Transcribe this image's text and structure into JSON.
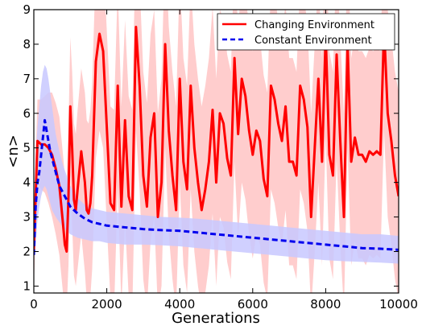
{
  "chart_data": {
    "type": "line",
    "title": "",
    "xlabel": "Generations",
    "ylabel": "<n>",
    "xlim": [
      0,
      10000
    ],
    "ylim": [
      0.8,
      9
    ],
    "xticks": [
      0,
      2000,
      4000,
      6000,
      8000,
      10000
    ],
    "yticks": [
      1,
      2,
      3,
      4,
      5,
      6,
      7,
      8,
      9
    ],
    "grid": false,
    "legend": {
      "position": "top-right"
    },
    "series": [
      {
        "name": "Changing Environment",
        "color": "#ff0000",
        "band_color": "#ffc8c8",
        "line_style": "solid",
        "x": [
          0,
          100,
          200,
          300,
          400,
          500,
          600,
          700,
          800,
          850,
          900,
          950,
          1000,
          1050,
          1100,
          1150,
          1200,
          1300,
          1400,
          1450,
          1500,
          1550,
          1600,
          1700,
          1800,
          1900,
          2000,
          2100,
          2200,
          2300,
          2400,
          2500,
          2600,
          2700,
          2800,
          2900,
          3000,
          3100,
          3200,
          3300,
          3400,
          3500,
          3600,
          3700,
          3800,
          3900,
          4000,
          4100,
          4200,
          4300,
          4400,
          4500,
          4600,
          4700,
          4800,
          4900,
          5000,
          5100,
          5200,
          5300,
          5400,
          5500,
          5600,
          5700,
          5800,
          5900,
          6000,
          6100,
          6200,
          6300,
          6400,
          6500,
          6600,
          6700,
          6800,
          6900,
          7000,
          7100,
          7200,
          7300,
          7400,
          7500,
          7600,
          7700,
          7800,
          7900,
          8000,
          8100,
          8200,
          8300,
          8400,
          8500,
          8600,
          8700,
          8800,
          8900,
          9000,
          9100,
          9200,
          9300,
          9400,
          9500,
          9600,
          9700,
          9800,
          9900,
          10000
        ],
        "values": [
          2.0,
          5.2,
          5.1,
          5.1,
          5.0,
          4.8,
          4.4,
          3.9,
          2.8,
          2.2,
          2.0,
          3.6,
          6.2,
          5.0,
          3.5,
          3.2,
          3.8,
          4.9,
          4.0,
          3.2,
          3.1,
          3.4,
          4.2,
          7.5,
          8.3,
          7.8,
          5.6,
          3.4,
          3.2,
          6.8,
          3.3,
          5.8,
          3.6,
          3.2,
          8.5,
          6.8,
          4.2,
          3.3,
          5.3,
          6.0,
          3.0,
          4.0,
          8.0,
          5.5,
          4.2,
          3.2,
          7.0,
          4.6,
          3.8,
          6.8,
          5.0,
          4.0,
          3.2,
          3.8,
          4.6,
          6.1,
          4.0,
          6.0,
          5.7,
          4.7,
          4.2,
          7.6,
          5.4,
          7.0,
          6.5,
          5.5,
          4.8,
          5.5,
          5.2,
          4.1,
          3.6,
          6.8,
          6.4,
          5.7,
          5.2,
          6.2,
          4.6,
          4.6,
          4.2,
          6.8,
          6.4,
          5.6,
          3.0,
          5.0,
          7.0,
          4.6,
          8.3,
          4.8,
          4.2,
          7.7,
          5.2,
          3.0,
          8.0,
          4.6,
          5.3,
          4.8,
          4.8,
          4.6,
          4.9,
          4.8,
          4.9,
          4.8,
          8.5,
          6.0,
          5.2,
          4.2,
          3.6
        ],
        "band_half_width": [
          1.0,
          1.2,
          1.3,
          1.4,
          1.6,
          1.8,
          1.9,
          2.0,
          2.0,
          2.0,
          2.0,
          2.0,
          2.0,
          2.2,
          2.2,
          2.2,
          2.3,
          2.4,
          2.6,
          2.6,
          2.6,
          2.7,
          2.7,
          2.8,
          2.8,
          2.8,
          2.8,
          2.8,
          2.9,
          2.9,
          2.9,
          2.9,
          2.9,
          2.9,
          3.0,
          3.0,
          3.0,
          3.0,
          3.0,
          3.0,
          3.0,
          3.0,
          3.0,
          3.0,
          3.0,
          3.0,
          3.0,
          3.0,
          3.0,
          3.0,
          3.0,
          3.0,
          3.0,
          3.0,
          3.0,
          3.0,
          3.0,
          3.0,
          3.0,
          3.0,
          3.0,
          3.0,
          3.0,
          3.0,
          3.0,
          3.0,
          3.0,
          3.0,
          3.0,
          3.0,
          3.0,
          3.0,
          3.0,
          3.0,
          3.0,
          3.0,
          3.0,
          3.0,
          3.0,
          3.0,
          3.0,
          3.0,
          3.0,
          3.0,
          3.0,
          3.0,
          3.0,
          3.0,
          3.0,
          3.0,
          3.0,
          3.0,
          3.0,
          3.0,
          3.0,
          3.0,
          3.0,
          3.0,
          3.0,
          3.0,
          3.0,
          3.0,
          3.0,
          3.0,
          3.0,
          3.0,
          3.0
        ]
      },
      {
        "name": "Constant Environment",
        "color": "#0000ee",
        "band_color": "#c8c8ff",
        "line_style": "dashed",
        "x": [
          0,
          50,
          100,
          150,
          200,
          250,
          300,
          350,
          400,
          450,
          500,
          600,
          700,
          800,
          900,
          1000,
          1200,
          1400,
          1600,
          1800,
          2000,
          2500,
          3000,
          3500,
          4000,
          4500,
          5000,
          5500,
          6000,
          6500,
          7000,
          7500,
          8000,
          8500,
          9000,
          9500,
          10000
        ],
        "values": [
          1.9,
          3.3,
          4.0,
          4.3,
          4.8,
          5.3,
          5.8,
          5.5,
          5.2,
          4.9,
          4.7,
          4.3,
          3.9,
          3.7,
          3.5,
          3.3,
          3.1,
          2.95,
          2.85,
          2.8,
          2.75,
          2.7,
          2.65,
          2.62,
          2.6,
          2.55,
          2.5,
          2.45,
          2.4,
          2.35,
          2.3,
          2.25,
          2.2,
          2.15,
          2.1,
          2.08,
          2.05
        ],
        "band_upper": [
          1.9,
          4.8,
          5.6,
          6.2,
          6.8,
          7.2,
          7.4,
          7.3,
          7.0,
          6.6,
          6.2,
          5.4,
          4.9,
          4.5,
          4.2,
          3.9,
          3.55,
          3.35,
          3.25,
          3.2,
          3.15,
          3.1,
          3.05,
          3.0,
          2.98,
          2.95,
          2.9,
          2.85,
          2.8,
          2.75,
          2.7,
          2.65,
          2.6,
          2.55,
          2.5,
          2.5,
          2.45
        ],
        "band_lower": [
          1.9,
          2.2,
          2.9,
          3.3,
          3.6,
          3.8,
          3.9,
          3.8,
          3.6,
          3.4,
          3.2,
          3.0,
          2.85,
          2.7,
          2.6,
          2.5,
          2.4,
          2.35,
          2.3,
          2.3,
          2.25,
          2.2,
          2.2,
          2.18,
          2.15,
          2.1,
          2.05,
          2.0,
          1.95,
          1.9,
          1.85,
          1.8,
          1.75,
          1.72,
          1.7,
          1.68,
          1.65
        ]
      }
    ]
  }
}
